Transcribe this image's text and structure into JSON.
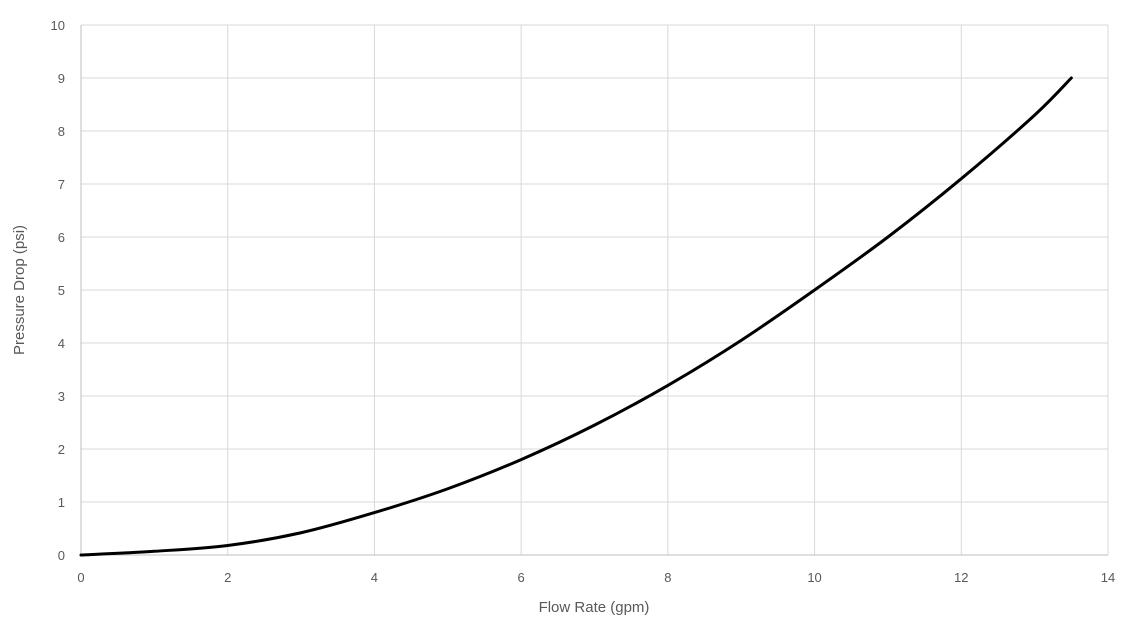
{
  "chart_data": {
    "type": "line",
    "title": "",
    "xlabel": "Flow Rate (gpm)",
    "ylabel": "Pressure Drop (psi)",
    "xlim": [
      0,
      14
    ],
    "ylim": [
      0,
      10
    ],
    "x_ticks": [
      0,
      2,
      4,
      6,
      8,
      10,
      12,
      14
    ],
    "y_ticks": [
      0,
      1,
      2,
      3,
      4,
      5,
      6,
      7,
      8,
      9,
      10
    ],
    "grid": true,
    "legend": "none",
    "series": [
      {
        "color": "#000000",
        "x": [
          0,
          1,
          2,
          3,
          4,
          5,
          6,
          7,
          8,
          9,
          10,
          11,
          12,
          13,
          13.5
        ],
        "y": [
          0,
          0.07,
          0.18,
          0.42,
          0.8,
          1.25,
          1.8,
          2.45,
          3.2,
          4.05,
          5.0,
          6.0,
          7.1,
          8.3,
          9.0
        ]
      }
    ]
  }
}
